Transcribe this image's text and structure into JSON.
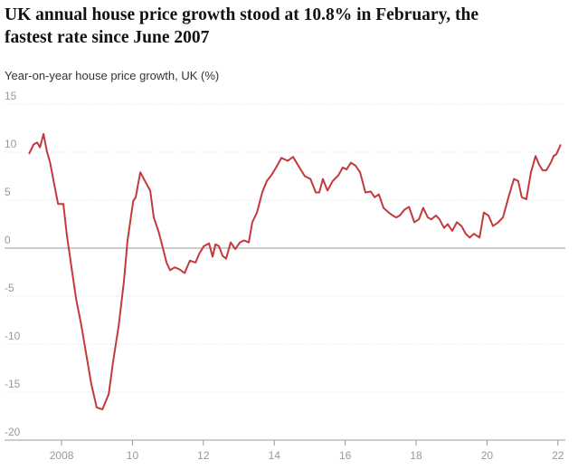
{
  "chart_data": {
    "type": "line",
    "title": "UK annual house price growth stood at 10.8% in February, the fastest rate since June 2007",
    "subtitle": "Year-on-year house price growth, UK (%)",
    "x": [
      2007.08,
      2007.21,
      2007.31,
      2007.39,
      2007.49,
      2007.59,
      2007.67,
      2007.8,
      2007.9,
      2008.05,
      2008.15,
      2008.26,
      2008.41,
      2008.56,
      2008.71,
      2008.84,
      2008.99,
      2009.15,
      2009.33,
      2009.45,
      2009.61,
      2009.76,
      2009.86,
      2010.02,
      2010.09,
      2010.22,
      2010.35,
      2010.5,
      2010.6,
      2010.73,
      2010.83,
      2010.96,
      2011.06,
      2011.19,
      2011.32,
      2011.47,
      2011.62,
      2011.78,
      2011.88,
      2012.01,
      2012.16,
      2012.26,
      2012.34,
      2012.44,
      2012.54,
      2012.64,
      2012.77,
      2012.9,
      2013.03,
      2013.15,
      2013.28,
      2013.38,
      2013.51,
      2013.66,
      2013.79,
      2013.92,
      2014.05,
      2014.2,
      2014.38,
      2014.53,
      2014.71,
      2014.86,
      2015.02,
      2015.17,
      2015.27,
      2015.37,
      2015.5,
      2015.65,
      2015.81,
      2015.93,
      2016.04,
      2016.16,
      2016.29,
      2016.42,
      2016.57,
      2016.72,
      2016.83,
      2016.95,
      2017.08,
      2017.23,
      2017.34,
      2017.44,
      2017.54,
      2017.67,
      2017.8,
      2017.95,
      2018.08,
      2018.2,
      2018.33,
      2018.43,
      2018.56,
      2018.66,
      2018.79,
      2018.89,
      2019.02,
      2019.15,
      2019.28,
      2019.4,
      2019.51,
      2019.63,
      2019.79,
      2019.91,
      2020.04,
      2020.17,
      2020.32,
      2020.45,
      2020.63,
      2020.76,
      2020.88,
      2020.98,
      2021.11,
      2021.24,
      2021.37,
      2021.47,
      2021.57,
      2021.67,
      2021.8,
      2021.88,
      2021.96,
      2022.08
    ],
    "series": [
      {
        "name": "Year-on-year house price growth",
        "color": "#c4393b",
        "values": [
          9.8,
          10.8,
          11,
          10.5,
          11.9,
          10,
          9,
          6.5,
          4.6,
          4.6,
          1.3,
          -1.5,
          -5.3,
          -8.1,
          -11.4,
          -14.2,
          -16.6,
          -16.8,
          -15.2,
          -11.9,
          -8.1,
          -3.4,
          0.8,
          4.9,
          5.3,
          7.9,
          7,
          6,
          3.2,
          1.8,
          0.4,
          -1.5,
          -2.3,
          -2,
          -2.2,
          -2.6,
          -1.3,
          -1.5,
          -0.6,
          0.2,
          0.5,
          -0.9,
          0.4,
          0.2,
          -0.8,
          -1.1,
          0.6,
          -0.1,
          0.6,
          0.8,
          0.6,
          2.7,
          3.7,
          5.8,
          7,
          7.6,
          8.4,
          9.4,
          9.1,
          9.5,
          8.4,
          7.5,
          7.2,
          5.8,
          5.8,
          7.2,
          6,
          7,
          7.6,
          8.4,
          8.2,
          8.9,
          8.6,
          7.9,
          5.8,
          5.9,
          5.3,
          5.6,
          4.2,
          3.7,
          3.4,
          3.2,
          3.4,
          4,
          4.3,
          2.7,
          3,
          4.2,
          3.2,
          3,
          3.4,
          3,
          2.1,
          2.5,
          1.8,
          2.7,
          2.3,
          1.5,
          1.1,
          1.5,
          1.1,
          3.7,
          3.4,
          2.3,
          2.7,
          3.2,
          5.6,
          7.2,
          7,
          5.3,
          5.1,
          7.9,
          9.6,
          8.7,
          8.1,
          8.1,
          8.9,
          9.6,
          9.8,
          10.8
        ]
      }
    ],
    "xlim": [
      2006.39,
      2022.21
    ],
    "xticks": [
      2008,
      {
        "value": 2010,
        "label": "10"
      },
      {
        "value": 2012,
        "label": "12"
      },
      {
        "value": 2014,
        "label": "14"
      },
      {
        "value": 2016,
        "label": "16"
      },
      {
        "value": 2018,
        "label": "18"
      },
      {
        "value": 2020,
        "label": "20"
      },
      {
        "value": 2022,
        "label": "22"
      }
    ],
    "ylim": [
      -20,
      15
    ],
    "yticks": [
      -20,
      -15,
      -10,
      -5,
      0,
      5,
      10,
      15
    ],
    "grid": true
  }
}
